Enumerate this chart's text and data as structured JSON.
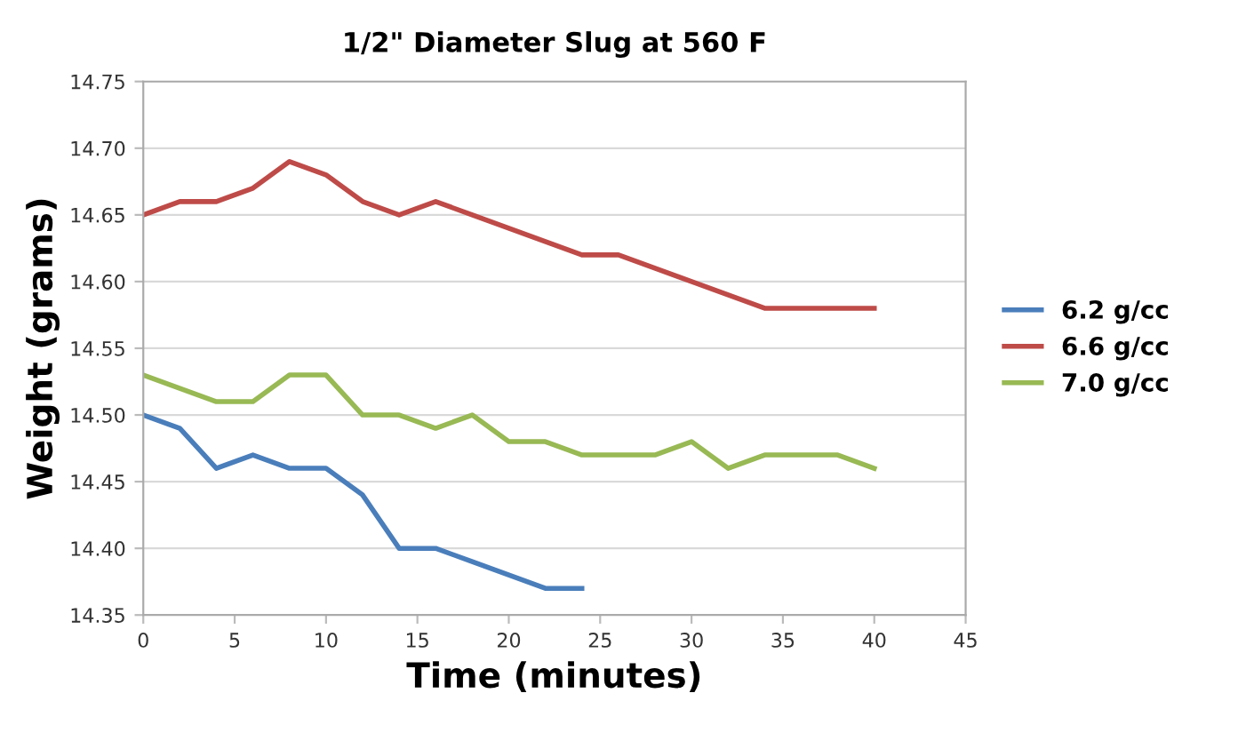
{
  "chart_data": {
    "type": "line",
    "title": "1/2\" Diameter Slug at 560 F",
    "xlabel": "Time (minutes)",
    "ylabel": "Weight (grams)",
    "xlim": [
      0,
      45
    ],
    "xticks": [
      0,
      5,
      10,
      15,
      20,
      25,
      30,
      35,
      40,
      45
    ],
    "ylim": [
      14.35,
      14.75
    ],
    "yticks": [
      {
        "value": 14.35,
        "label": "14.35"
      },
      {
        "value": 14.4,
        "label": "14.40"
      },
      {
        "value": 14.45,
        "label": "14.45"
      },
      {
        "value": 14.5,
        "label": "14.50"
      },
      {
        "value": 14.55,
        "label": "14.55"
      },
      {
        "value": 14.6,
        "label": "14.60"
      },
      {
        "value": 14.65,
        "label": "14.65"
      },
      {
        "value": 14.7,
        "label": "14.70"
      },
      {
        "value": 14.75,
        "label": "14.75"
      }
    ],
    "grid": "y",
    "legend": "right",
    "marker": "none",
    "line_style": "solid",
    "series": [
      {
        "name": "6.2 g/cc",
        "color": "#4a7ebb",
        "x": [
          0,
          2,
          4,
          6,
          8,
          10,
          12,
          14,
          16,
          18,
          20,
          22,
          24
        ],
        "values": [
          14.5,
          14.49,
          14.46,
          14.47,
          14.46,
          14.46,
          14.44,
          14.4,
          14.4,
          14.39,
          14.38,
          14.37,
          14.37
        ]
      },
      {
        "name": "6.6 g/cc",
        "color": "#be4b48",
        "x": [
          0,
          2,
          4,
          6,
          8,
          10,
          12,
          14,
          16,
          18,
          20,
          22,
          24,
          26,
          28,
          30,
          32,
          34,
          36,
          38,
          40
        ],
        "values": [
          14.65,
          14.66,
          14.66,
          14.67,
          14.69,
          14.68,
          14.66,
          14.65,
          14.66,
          14.65,
          14.64,
          14.63,
          14.62,
          14.62,
          14.61,
          14.6,
          14.59,
          14.58,
          14.58,
          14.58,
          14.58
        ]
      },
      {
        "name": "7.0 g/cc",
        "color": "#98b954",
        "x": [
          0,
          2,
          4,
          6,
          8,
          10,
          12,
          14,
          16,
          18,
          20,
          22,
          24,
          26,
          28,
          30,
          32,
          34,
          36,
          38,
          40
        ],
        "values": [
          14.53,
          14.52,
          14.51,
          14.51,
          14.53,
          14.53,
          14.5,
          14.5,
          14.49,
          14.5,
          14.48,
          14.48,
          14.47,
          14.47,
          14.47,
          14.48,
          14.46,
          14.47,
          14.47,
          14.47,
          14.46
        ]
      }
    ]
  }
}
